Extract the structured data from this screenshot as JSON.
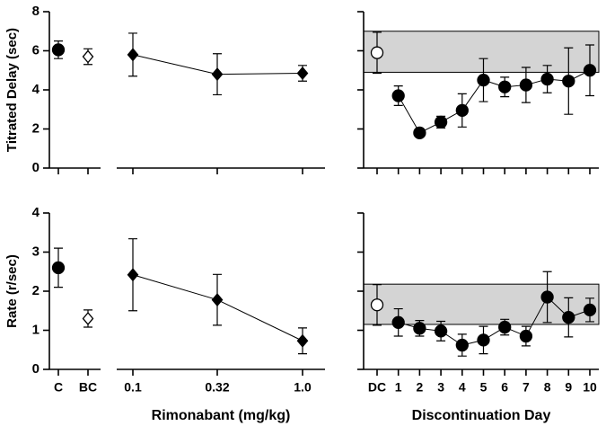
{
  "chart_data": [
    {
      "type": "scatter",
      "ylabel": "Titrated Delay (sec)",
      "ylim": [
        0,
        8
      ],
      "yticks": [
        0,
        2,
        4,
        6,
        8
      ],
      "series": [
        {
          "marker": "circle",
          "color": "#000000",
          "filled": true,
          "line": false,
          "values": [
            6.05,
            null,
            null,
            null,
            null
          ],
          "errors": [
            0.45,
            null,
            null,
            null,
            null
          ]
        },
        {
          "marker": "diamond",
          "color": "#000000",
          "filled": false,
          "line": false,
          "values": [
            null,
            5.7,
            null,
            null,
            null
          ],
          "errors": [
            null,
            0.4,
            null,
            null,
            null
          ]
        },
        {
          "marker": "diamond",
          "color": "#000000",
          "filled": true,
          "line": true,
          "values": [
            null,
            null,
            5.8,
            4.8,
            4.85
          ],
          "errors": [
            null,
            null,
            1.1,
            1.05,
            0.4
          ]
        }
      ]
    },
    {
      "type": "scatter",
      "ylim": [
        0,
        8
      ],
      "yticks": [
        0,
        2,
        4,
        6,
        8
      ],
      "ytick_labels": false,
      "band": [
        4.9,
        7.0
      ],
      "series": [
        {
          "marker": "circle",
          "color": "#000000",
          "filled": false,
          "line": false,
          "values": [
            5.9,
            null,
            null,
            null,
            null,
            null,
            null,
            null,
            null,
            null,
            null
          ],
          "errors": [
            1.05,
            null,
            null,
            null,
            null,
            null,
            null,
            null,
            null,
            null,
            null
          ]
        },
        {
          "marker": "circle",
          "color": "#000000",
          "filled": true,
          "line": true,
          "values": [
            null,
            3.7,
            1.8,
            2.35,
            2.95,
            4.5,
            4.15,
            4.25,
            4.55,
            4.45,
            5.0
          ],
          "errors": [
            null,
            0.5,
            0.1,
            0.3,
            0.85,
            1.1,
            0.5,
            0.9,
            0.7,
            1.7,
            1.3
          ]
        }
      ]
    },
    {
      "type": "scatter",
      "ylabel": "Rate (r/sec)",
      "xlabel": "Rimonabant (mg/kg)",
      "categories": [
        "C",
        "BC",
        "0.1",
        "0.32",
        "1.0"
      ],
      "ylim": [
        0,
        4
      ],
      "yticks": [
        0,
        1,
        2,
        3,
        4
      ],
      "series": [
        {
          "marker": "circle",
          "color": "#000000",
          "filled": true,
          "line": false,
          "values": [
            2.6,
            null,
            null,
            null,
            null
          ],
          "errors": [
            0.5,
            null,
            null,
            null,
            null
          ]
        },
        {
          "marker": "diamond",
          "color": "#000000",
          "filled": false,
          "line": false,
          "values": [
            null,
            1.3,
            null,
            null,
            null
          ],
          "errors": [
            null,
            0.22,
            null,
            null,
            null
          ]
        },
        {
          "marker": "diamond",
          "color": "#000000",
          "filled": true,
          "line": true,
          "values": [
            null,
            null,
            2.42,
            1.78,
            0.73
          ],
          "errors": [
            null,
            null,
            0.92,
            0.65,
            0.33
          ]
        }
      ]
    },
    {
      "type": "scatter",
      "xlabel": "Discontinuation Day",
      "categories": [
        "DC",
        "1",
        "2",
        "3",
        "4",
        "5",
        "6",
        "7",
        "8",
        "9",
        "10"
      ],
      "ylim": [
        0,
        4
      ],
      "yticks": [
        0,
        1,
        2,
        3,
        4
      ],
      "ytick_labels": false,
      "band": [
        1.15,
        2.18
      ],
      "series": [
        {
          "marker": "circle",
          "color": "#000000",
          "filled": false,
          "line": false,
          "values": [
            1.65,
            null,
            null,
            null,
            null,
            null,
            null,
            null,
            null,
            null,
            null
          ],
          "errors": [
            0.52,
            null,
            null,
            null,
            null,
            null,
            null,
            null,
            null,
            null,
            null
          ]
        },
        {
          "marker": "circle",
          "color": "#000000",
          "filled": true,
          "line": true,
          "values": [
            null,
            1.2,
            1.05,
            0.98,
            0.62,
            0.75,
            1.08,
            0.85,
            1.85,
            1.33,
            1.52
          ],
          "errors": [
            null,
            0.35,
            0.2,
            0.25,
            0.28,
            0.35,
            0.2,
            0.25,
            0.65,
            0.5,
            0.3
          ]
        }
      ]
    }
  ]
}
